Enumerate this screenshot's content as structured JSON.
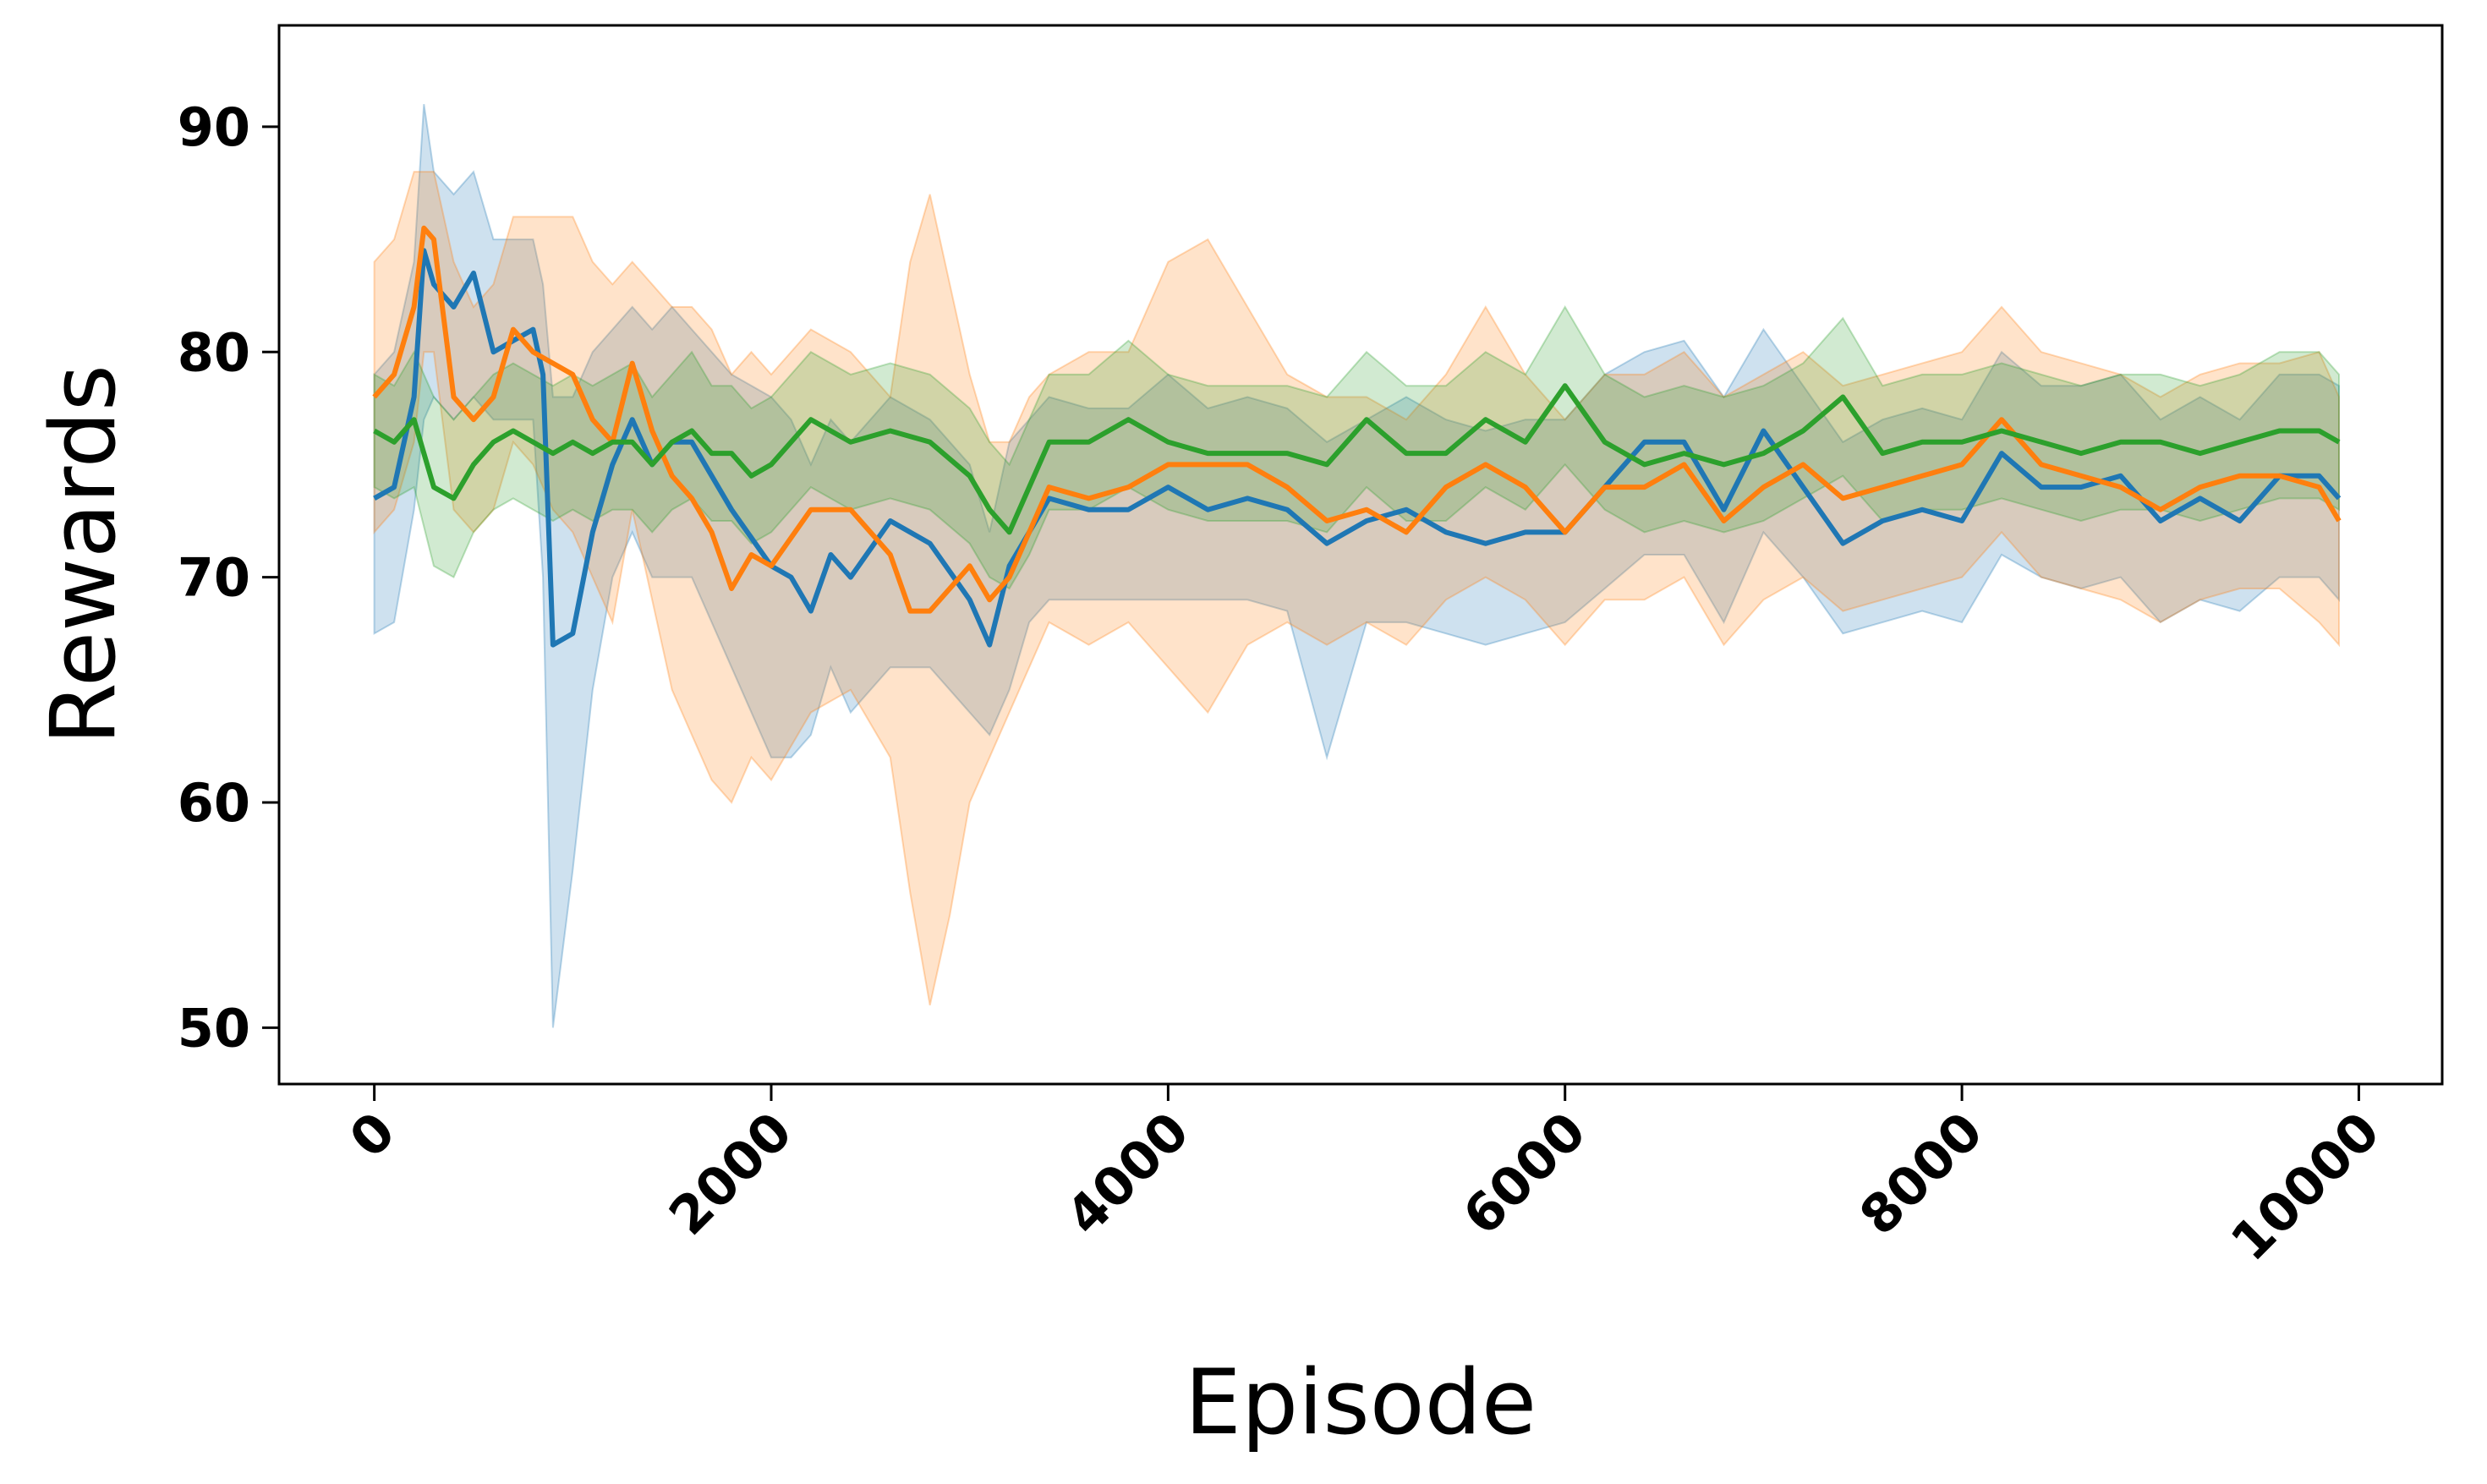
{
  "chart_data": {
    "type": "line",
    "title": "",
    "xlabel": "Episode",
    "ylabel": "Rewards",
    "xlim": [
      -480,
      10420
    ],
    "ylim": [
      47.5,
      94.5
    ],
    "xticks": [
      0,
      2000,
      4000,
      6000,
      8000,
      10000
    ],
    "xtick_labels": [
      "0",
      "2000",
      "4000",
      "6000",
      "8000",
      "10000"
    ],
    "yticks": [
      50,
      60,
      70,
      80,
      90
    ],
    "ytick_labels": [
      "50",
      "60",
      "70",
      "80",
      "90"
    ],
    "grid": false,
    "legend": "none",
    "series": [
      {
        "color": "#1f77b4",
        "x": [
          0,
          100,
          200,
          250,
          300,
          400,
          500,
          600,
          700,
          800,
          850,
          900,
          1000,
          1100,
          1200,
          1300,
          1400,
          1500,
          1600,
          1800,
          2000,
          2100,
          2200,
          2300,
          2400,
          2600,
          2800,
          3000,
          3100,
          3200,
          3300,
          3400,
          3600,
          3800,
          4000,
          4200,
          4400,
          4600,
          4800,
          5000,
          5200,
          5400,
          5600,
          5800,
          6000,
          6200,
          6400,
          6600,
          6800,
          7000,
          7200,
          7400,
          7600,
          7800,
          8000,
          8200,
          8400,
          8600,
          8800,
          9000,
          9200,
          9400,
          9600,
          9800,
          9900
        ],
        "values": [
          73.5,
          74,
          78,
          84.5,
          83,
          82,
          83.5,
          80,
          80.5,
          81,
          79,
          67,
          67.5,
          72,
          75,
          77,
          75,
          76,
          76,
          73,
          70.5,
          70,
          68.5,
          71,
          70,
          72.5,
          71.5,
          69,
          67,
          70.5,
          72,
          73.5,
          73,
          73,
          74,
          73,
          73.5,
          73,
          71.5,
          72.5,
          73,
          72,
          71.5,
          72,
          72,
          74,
          76,
          76,
          73,
          76.5,
          74,
          71.5,
          72.5,
          73,
          72.5,
          75.5,
          74,
          74,
          74.5,
          72.5,
          73.5,
          72.5,
          74.5,
          74.5,
          73.5
        ],
        "lower": [
          67.5,
          68,
          73,
          77,
          78,
          77,
          78,
          77,
          77,
          77,
          70,
          50,
          57,
          65,
          70,
          72,
          70,
          70,
          70,
          66,
          62,
          62,
          63,
          66,
          64,
          66,
          66,
          64,
          63,
          65,
          68,
          69,
          69,
          69,
          69,
          69,
          69,
          68.5,
          62,
          68,
          68,
          67.5,
          67,
          67.5,
          68,
          69.5,
          71,
          71,
          68,
          72,
          70,
          67.5,
          68,
          68.5,
          68,
          71,
          70,
          69.5,
          70,
          68,
          69,
          68.5,
          70,
          70,
          69
        ],
        "upper": [
          79,
          80,
          84,
          91,
          88,
          87,
          88,
          85,
          85,
          85,
          83,
          78,
          78,
          80,
          81,
          82,
          81,
          82,
          81,
          79,
          78,
          77,
          75,
          77,
          76,
          78,
          77,
          75,
          72,
          76,
          77,
          78,
          77.5,
          77.5,
          79,
          77.5,
          78,
          77.5,
          76,
          77,
          78,
          77,
          76.5,
          77,
          77,
          79,
          80,
          80.5,
          78,
          81,
          78.5,
          76,
          77,
          77.5,
          77,
          80,
          78.5,
          78.5,
          79,
          77,
          78,
          77,
          79,
          79,
          78.5
        ]
      },
      {
        "color": "#ff7f0e",
        "x": [
          0,
          100,
          200,
          250,
          300,
          400,
          500,
          600,
          700,
          800,
          900,
          1000,
          1100,
          1200,
          1300,
          1400,
          1500,
          1600,
          1700,
          1800,
          1900,
          2000,
          2200,
          2400,
          2600,
          2700,
          2800,
          2900,
          3000,
          3100,
          3200,
          3300,
          3400,
          3600,
          3800,
          4000,
          4200,
          4400,
          4600,
          4800,
          5000,
          5200,
          5400,
          5600,
          5800,
          6000,
          6200,
          6400,
          6600,
          6800,
          7000,
          7200,
          7400,
          7600,
          7800,
          8000,
          8200,
          8400,
          8600,
          8800,
          9000,
          9200,
          9400,
          9600,
          9800,
          9900
        ],
        "values": [
          78,
          79,
          82,
          85.5,
          85,
          78,
          77,
          78,
          81,
          80,
          79.5,
          79,
          77,
          76,
          79.5,
          76.5,
          74.5,
          73.5,
          72,
          69.5,
          71,
          70.5,
          73,
          73,
          71,
          68.5,
          68.5,
          69.5,
          70.5,
          69,
          70,
          72,
          74,
          73.5,
          74,
          75,
          75,
          75,
          74,
          72.5,
          73,
          72,
          74,
          75,
          74,
          72,
          74,
          74,
          75,
          72.5,
          74,
          75,
          73.5,
          74,
          74.5,
          75,
          77,
          75,
          74.5,
          74,
          73,
          74,
          74.5,
          74.5,
          74,
          72.5
        ],
        "lower": [
          72,
          73,
          76,
          80,
          80,
          73,
          72,
          73,
          76,
          75,
          73,
          72,
          70,
          68,
          73,
          69,
          65,
          63,
          61,
          60,
          62,
          61,
          64,
          65,
          62,
          56,
          51,
          55,
          60,
          62,
          64,
          66,
          68,
          67,
          68,
          66,
          64,
          67,
          68,
          67,
          68,
          67,
          69,
          70,
          69,
          67,
          69,
          69,
          70,
          67,
          69,
          70,
          68.5,
          69,
          69.5,
          70,
          72,
          70,
          69.5,
          69,
          68,
          69,
          69.5,
          69.5,
          68,
          67
        ],
        "upper": [
          84,
          85,
          88,
          88,
          88,
          84,
          82,
          83,
          86,
          86,
          86,
          86,
          84,
          83,
          84,
          83,
          82,
          82,
          81,
          79,
          80,
          79,
          81,
          80,
          78,
          84,
          87,
          83,
          79,
          76,
          76,
          78,
          79,
          80,
          80,
          84,
          85,
          82,
          79,
          78,
          78,
          77,
          79,
          82,
          79,
          77,
          79,
          79,
          80,
          78,
          79,
          80,
          78.5,
          79,
          79.5,
          80,
          82,
          80,
          79.5,
          79,
          78,
          79,
          79.5,
          79.5,
          80,
          78
        ]
      },
      {
        "color": "#2ca02c",
        "x": [
          0,
          100,
          200,
          300,
          400,
          500,
          600,
          700,
          800,
          900,
          1000,
          1100,
          1200,
          1300,
          1400,
          1500,
          1600,
          1700,
          1800,
          1900,
          2000,
          2200,
          2400,
          2600,
          2800,
          3000,
          3100,
          3200,
          3300,
          3400,
          3600,
          3800,
          4000,
          4200,
          4400,
          4600,
          4800,
          5000,
          5200,
          5400,
          5600,
          5800,
          6000,
          6200,
          6400,
          6600,
          6800,
          7000,
          7200,
          7400,
          7600,
          7800,
          8000,
          8200,
          8400,
          8600,
          8800,
          9000,
          9200,
          9400,
          9600,
          9800,
          9900
        ],
        "values": [
          76.5,
          76,
          77,
          74,
          73.5,
          75,
          76,
          76.5,
          76,
          75.5,
          76,
          75.5,
          76,
          76,
          75,
          76,
          76.5,
          75.5,
          75.5,
          74.5,
          75,
          77,
          76,
          76.5,
          76,
          74.5,
          73,
          72,
          74,
          76,
          76,
          77,
          76,
          75.5,
          75.5,
          75.5,
          75,
          77,
          75.5,
          75.5,
          77,
          76,
          78.5,
          76,
          75,
          75.5,
          75,
          75.5,
          76.5,
          78,
          75.5,
          76,
          76,
          76.5,
          76,
          75.5,
          76,
          76,
          75.5,
          76,
          76.5,
          76.5,
          76
        ],
        "lower": [
          74,
          73.5,
          74,
          70.5,
          70,
          72,
          73,
          73.5,
          73,
          72.5,
          73,
          72.5,
          73,
          73,
          72,
          73,
          73.5,
          72.5,
          72.5,
          71.5,
          72,
          74,
          73,
          73.5,
          73,
          71.5,
          70,
          69.5,
          71,
          73,
          73,
          74,
          73,
          72.5,
          72.5,
          72.5,
          72,
          74,
          72.5,
          72.5,
          74,
          73,
          75,
          73,
          72,
          72.5,
          72,
          72.5,
          73.5,
          74.5,
          72.5,
          73,
          73,
          73.5,
          73,
          72.5,
          73,
          73,
          72.5,
          73,
          73.5,
          73.5,
          73
        ],
        "upper": [
          79,
          78.5,
          80,
          78,
          77,
          78,
          79,
          79.5,
          79,
          78.5,
          79,
          78.5,
          79,
          79.5,
          78,
          79,
          80,
          78.5,
          78.5,
          77.5,
          78,
          80,
          79,
          79.5,
          79,
          77.5,
          76,
          75,
          77,
          79,
          79,
          80.5,
          79,
          78.5,
          78.5,
          78.5,
          78,
          80,
          78.5,
          78.5,
          80,
          79,
          82,
          79,
          78,
          78.5,
          78,
          78.5,
          79.5,
          81.5,
          78.5,
          79,
          79,
          79.5,
          79,
          78.5,
          79,
          79,
          78.5,
          79,
          80,
          80,
          79
        ]
      }
    ]
  }
}
